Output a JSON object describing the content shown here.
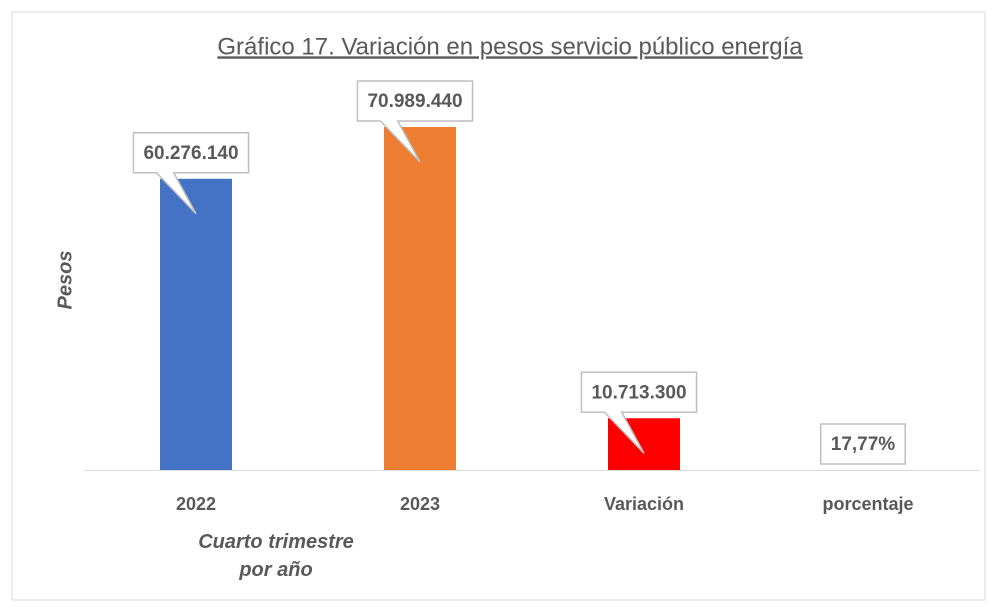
{
  "chart_data": {
    "type": "bar",
    "title": "Gráfico 17. Variación en pesos servicio público energía",
    "y_label": "Pesos",
    "x_label": "Cuarto trimestre por año",
    "categories": [
      "2022",
      "2023",
      "Variación",
      "porcentaje"
    ],
    "values": [
      60276140,
      70989440,
      10713300,
      17.77
    ],
    "value_labels": [
      "60.276.140",
      "70.989.440",
      "10.713.300",
      "17,77%"
    ],
    "colors": [
      "#4472c4",
      "#ed7d31",
      "#ff0000",
      "#a5a5a5"
    ],
    "ylim": [
      0,
      80000000
    ]
  }
}
